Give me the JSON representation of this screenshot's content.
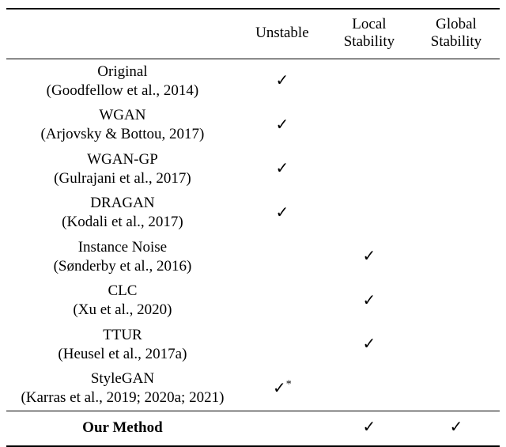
{
  "headers": {
    "col0": "",
    "col1": "Unstable",
    "col2_line1": "Local",
    "col2_line2": "Stability",
    "col3_line1": "Global",
    "col3_line2": "Stability"
  },
  "marks": {
    "check": "✓",
    "check_star": "✓*"
  },
  "rows": [
    {
      "name": "Original",
      "cite": "(Goodfellow et al., 2014)",
      "unstable": "✓",
      "local": "",
      "global": ""
    },
    {
      "name": "WGAN",
      "cite": "(Arjovsky & Bottou, 2017)",
      "unstable": "✓",
      "local": "",
      "global": ""
    },
    {
      "name": "WGAN-GP",
      "cite": "(Gulrajani et al., 2017)",
      "unstable": "✓",
      "local": "",
      "global": ""
    },
    {
      "name": "DRAGAN",
      "cite": "(Kodali et al., 2017)",
      "unstable": "✓",
      "local": "",
      "global": ""
    },
    {
      "name": "Instance Noise",
      "cite": "(Sønderby et al., 2016)",
      "unstable": "",
      "local": "✓",
      "global": ""
    },
    {
      "name": "CLC",
      "cite": "(Xu et al., 2020)",
      "unstable": "",
      "local": "✓",
      "global": ""
    },
    {
      "name": "TTUR",
      "cite": "(Heusel et al., 2017a)",
      "unstable": "",
      "local": "✓",
      "global": ""
    },
    {
      "name": "StyleGAN",
      "cite": "(Karras et al., 2019; 2020a; 2021)",
      "unstable_html": "checkstar",
      "unstable": "",
      "local": "",
      "global": ""
    }
  ],
  "our": {
    "name": "Our Method",
    "unstable": "",
    "local": "✓",
    "global": "✓"
  },
  "style": {
    "font_family": "Times New Roman",
    "font_size_pt": 14,
    "check_color": "#000000",
    "rule_color": "#000000",
    "background": "#ffffff"
  }
}
